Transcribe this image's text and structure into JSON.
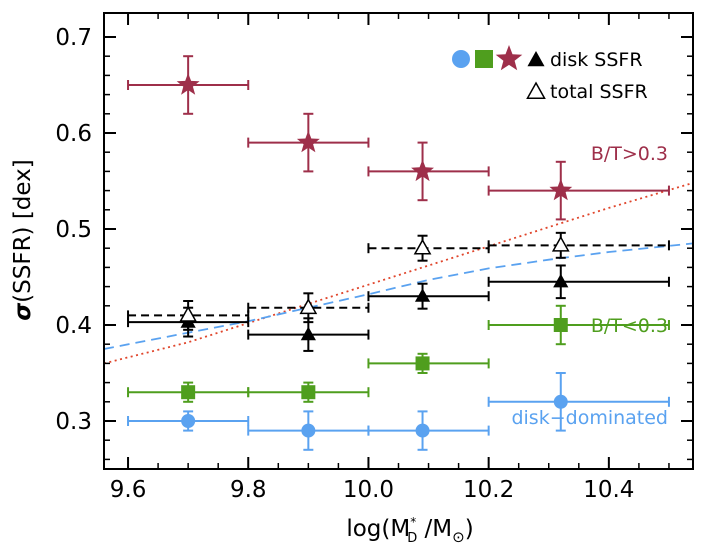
{
  "chart_data": {
    "type": "scatter",
    "xlabel_main": "log(M",
    "xlabel_sup": "*",
    "xlabel_sub": "D",
    "xlabel_mid": " /M",
    "xlabel_sun": "⊙",
    "xlabel_end": ")",
    "ylabel_sigma": "σ",
    "ylabel_rest": "(SSFR)  [dex]",
    "xlim": [
      9.56,
      10.54
    ],
    "ylim": [
      0.25,
      0.725
    ],
    "xticks": [
      9.6,
      9.8,
      10.0,
      10.2,
      10.4
    ],
    "xtick_labels": [
      "9.6",
      "9.8",
      "10.0",
      "10.2",
      "10.4"
    ],
    "yticks": [
      0.3,
      0.4,
      0.5,
      0.6,
      0.7
    ],
    "ytick_labels": [
      "0.3",
      "0.4",
      "0.5",
      "0.6",
      "0.7"
    ],
    "colors": {
      "bt_high": "#9e2f4a",
      "bt_low": "#4f9e1e",
      "disk_dom": "#5aa2f0",
      "disk_ssfr": "#000000"
    },
    "legend": {
      "disk_label": "disk SSFR",
      "total_label": "total SSFR",
      "placement": "top-right"
    },
    "annotations": [
      {
        "key": "bt_high",
        "text": "B/T>0.3",
        "color": "#9e2f4a"
      },
      {
        "key": "bt_low",
        "text": "B/T<0.3",
        "color": "#4f9e1e"
      },
      {
        "key": "disk_dom",
        "text": "disk−dominated",
        "color": "#5aa2f0"
      }
    ],
    "series": [
      {
        "key": "bt_high",
        "marker": "star",
        "color": "#9e2f4a",
        "points": [
          {
            "x": 9.7,
            "y": 0.65,
            "xlo": 9.6,
            "xhi": 9.8,
            "ylo": 0.62,
            "yhi": 0.68
          },
          {
            "x": 9.9,
            "y": 0.59,
            "xlo": 9.8,
            "xhi": 10.0,
            "ylo": 0.56,
            "yhi": 0.62
          },
          {
            "x": 10.09,
            "y": 0.56,
            "xlo": 10.0,
            "xhi": 10.2,
            "ylo": 0.53,
            "yhi": 0.59
          },
          {
            "x": 10.32,
            "y": 0.54,
            "xlo": 10.2,
            "xhi": 10.5,
            "ylo": 0.51,
            "yhi": 0.57
          }
        ]
      },
      {
        "key": "bt_low",
        "marker": "square",
        "color": "#4f9e1e",
        "points": [
          {
            "x": 9.7,
            "y": 0.33,
            "xlo": 9.6,
            "xhi": 9.8,
            "ylo": 0.32,
            "yhi": 0.34
          },
          {
            "x": 9.9,
            "y": 0.33,
            "xlo": 9.8,
            "xhi": 10.0,
            "ylo": 0.32,
            "yhi": 0.34
          },
          {
            "x": 10.09,
            "y": 0.36,
            "xlo": 10.0,
            "xhi": 10.2,
            "ylo": 0.35,
            "yhi": 0.37
          },
          {
            "x": 10.32,
            "y": 0.4,
            "xlo": 10.2,
            "xhi": 10.5,
            "ylo": 0.38,
            "yhi": 0.42
          }
        ]
      },
      {
        "key": "disk_dom",
        "marker": "circle",
        "color": "#5aa2f0",
        "points": [
          {
            "x": 9.7,
            "y": 0.3,
            "xlo": 9.6,
            "xhi": 9.8,
            "ylo": 0.29,
            "yhi": 0.31
          },
          {
            "x": 9.9,
            "y": 0.29,
            "xlo": 9.8,
            "xhi": 10.0,
            "ylo": 0.27,
            "yhi": 0.31
          },
          {
            "x": 10.09,
            "y": 0.29,
            "xlo": 10.0,
            "xhi": 10.2,
            "ylo": 0.27,
            "yhi": 0.31
          },
          {
            "x": 10.32,
            "y": 0.32,
            "xlo": 10.2,
            "xhi": 10.5,
            "ylo": 0.29,
            "yhi": 0.35
          }
        ]
      },
      {
        "key": "disk_ssfr",
        "marker": "triangle-filled",
        "color": "#000000",
        "points": [
          {
            "x": 9.7,
            "y": 0.403,
            "xlo": 9.6,
            "xhi": 9.8,
            "ylo": 0.388,
            "yhi": 0.418
          },
          {
            "x": 9.9,
            "y": 0.39,
            "xlo": 9.8,
            "xhi": 10.0,
            "ylo": 0.373,
            "yhi": 0.407
          },
          {
            "x": 10.09,
            "y": 0.43,
            "xlo": 10.0,
            "xhi": 10.2,
            "ylo": 0.417,
            "yhi": 0.443
          },
          {
            "x": 10.32,
            "y": 0.445,
            "xlo": 10.2,
            "xhi": 10.5,
            "ylo": 0.428,
            "yhi": 0.462
          }
        ]
      },
      {
        "key": "total_ssfr",
        "marker": "triangle-open",
        "color": "#000000",
        "points": [
          {
            "x": 9.7,
            "y": 0.41,
            "xlo": 9.6,
            "xhi": 9.8,
            "ylo": 0.395,
            "yhi": 0.425
          },
          {
            "x": 9.9,
            "y": 0.418,
            "xlo": 9.8,
            "xhi": 10.0,
            "ylo": 0.403,
            "yhi": 0.433
          },
          {
            "x": 10.09,
            "y": 0.48,
            "xlo": 10.0,
            "xhi": 10.2,
            "ylo": 0.467,
            "yhi": 0.493
          },
          {
            "x": 10.32,
            "y": 0.483,
            "xlo": 10.2,
            "xhi": 10.5,
            "ylo": 0.47,
            "yhi": 0.496
          }
        ]
      }
    ],
    "curves": [
      {
        "key": "red-dotted",
        "style": "dotted",
        "color": "#e0452b",
        "x": [
          9.56,
          9.7,
          9.8,
          9.9,
          10.0,
          10.1,
          10.2,
          10.3,
          10.4,
          10.54
        ],
        "y": [
          0.36,
          0.382,
          0.402,
          0.422,
          0.442,
          0.462,
          0.482,
          0.502,
          0.522,
          0.548
        ]
      },
      {
        "key": "blue-dashed",
        "style": "dashed",
        "color": "#5aa2f0",
        "x": [
          9.56,
          9.7,
          9.8,
          9.9,
          10.0,
          10.1,
          10.2,
          10.3,
          10.4,
          10.54
        ],
        "y": [
          0.375,
          0.392,
          0.404,
          0.418,
          0.432,
          0.447,
          0.459,
          0.468,
          0.476,
          0.485
        ]
      }
    ]
  }
}
